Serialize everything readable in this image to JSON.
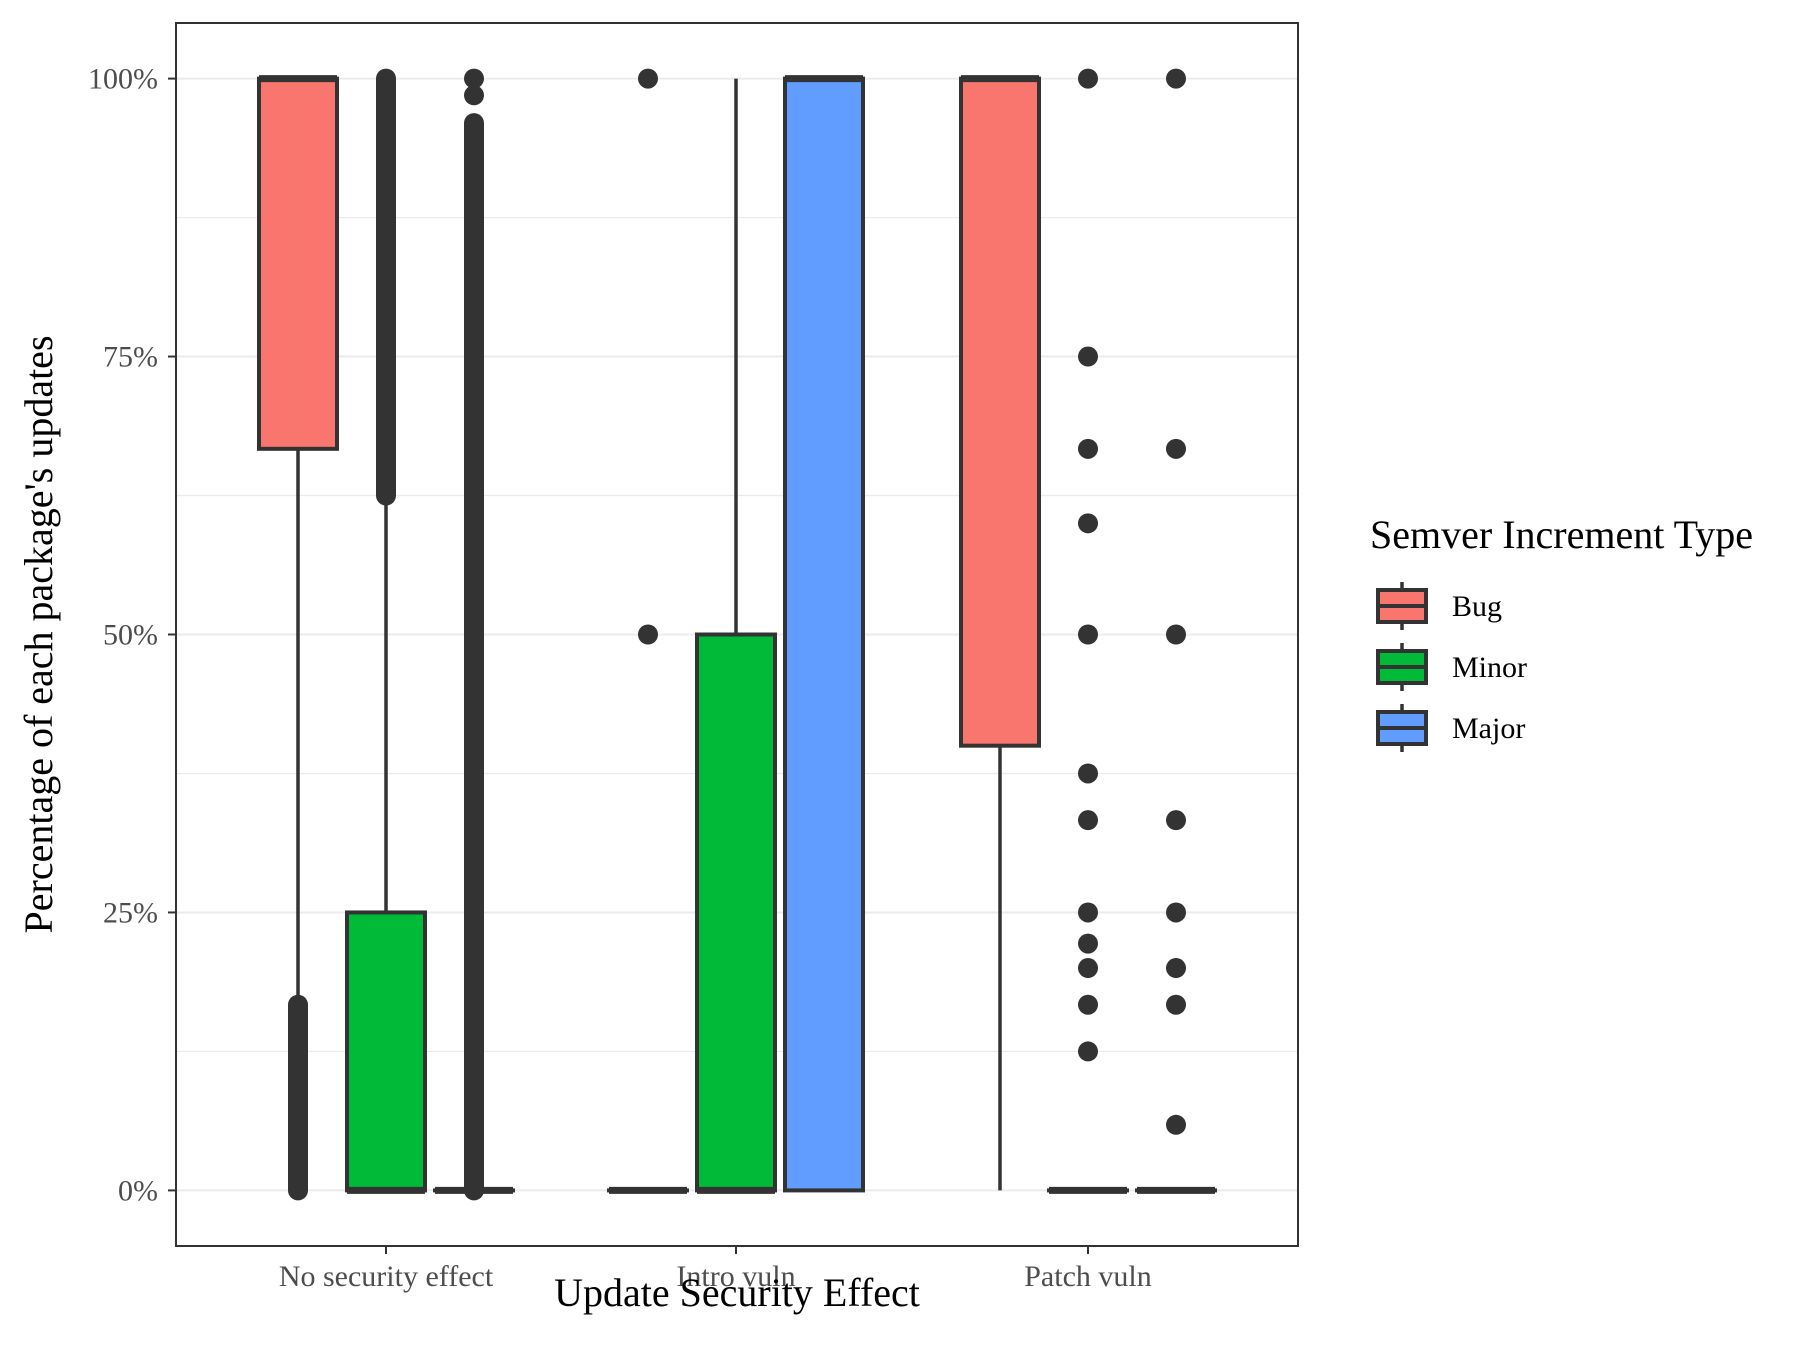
{
  "chart_data": {
    "type": "boxplot",
    "xlabel": "Update Security Effect",
    "ylabel": "Percentage of each package's updates",
    "categories": [
      "No security effect",
      "Intro vuln",
      "Patch vuln"
    ],
    "ylim": [
      -5,
      105
    ],
    "yticks": [
      0,
      25,
      50,
      75,
      100
    ],
    "ytick_labels": [
      "0%",
      "25%",
      "50%",
      "75%",
      "100%"
    ],
    "grid": {
      "major_y": true,
      "minor_y": true,
      "x": false
    },
    "legend": {
      "title": "Semver Increment Type",
      "placement": "right",
      "items": [
        {
          "name": "Bug",
          "color": "#F8766D"
        },
        {
          "name": "Minor",
          "color": "#00BA38"
        },
        {
          "name": "Major",
          "color": "#619CFF"
        }
      ]
    },
    "series": [
      {
        "name": "Bug",
        "color": "#F8766D",
        "boxes": [
          {
            "category": "No security effect",
            "q1": 66.7,
            "median": 100,
            "q3": 100,
            "whisker_low": 16.7,
            "whisker_high": 100,
            "outliers": [],
            "outlier_range": [
              0,
              16.7
            ]
          },
          {
            "category": "Intro vuln",
            "q1": 0,
            "median": 0,
            "q3": 0,
            "whisker_low": 0,
            "whisker_high": 0,
            "outliers": [
              50,
              100
            ]
          },
          {
            "category": "Patch vuln",
            "q1": 40,
            "median": 100,
            "q3": 100,
            "whisker_low": 0,
            "whisker_high": 100,
            "outliers": []
          }
        ]
      },
      {
        "name": "Minor",
        "color": "#00BA38",
        "boxes": [
          {
            "category": "No security effect",
            "q1": 0,
            "median": 0,
            "q3": 25,
            "whisker_low": 0,
            "whisker_high": 62.5,
            "outliers": [],
            "outlier_range": [
              62.5,
              100
            ]
          },
          {
            "category": "Intro vuln",
            "q1": 0,
            "median": 0,
            "q3": 50,
            "whisker_low": 0,
            "whisker_high": 100,
            "outliers": []
          },
          {
            "category": "Patch vuln",
            "q1": 0,
            "median": 0,
            "q3": 0,
            "whisker_low": 0,
            "whisker_high": 0,
            "outliers": [
              12.5,
              16.7,
              20,
              22.2,
              25,
              33.3,
              37.5,
              50,
              60,
              66.7,
              75,
              100
            ]
          }
        ]
      },
      {
        "name": "Major",
        "color": "#619CFF",
        "boxes": [
          {
            "category": "No security effect",
            "q1": 0,
            "median": 0,
            "q3": 0,
            "whisker_low": 0,
            "whisker_high": 0,
            "outliers": [
              98.5,
              100
            ],
            "outlier_range": [
              0,
              96
            ]
          },
          {
            "category": "Intro vuln",
            "q1": 0,
            "median": 100,
            "q3": 100,
            "whisker_low": 0,
            "whisker_high": 100,
            "outliers": []
          },
          {
            "category": "Patch vuln",
            "q1": 0,
            "median": 0,
            "q3": 0,
            "whisker_low": 0,
            "whisker_high": 0,
            "outliers": [
              5.9,
              16.7,
              20,
              25,
              33.3,
              50,
              66.7,
              100
            ]
          }
        ]
      }
    ]
  }
}
